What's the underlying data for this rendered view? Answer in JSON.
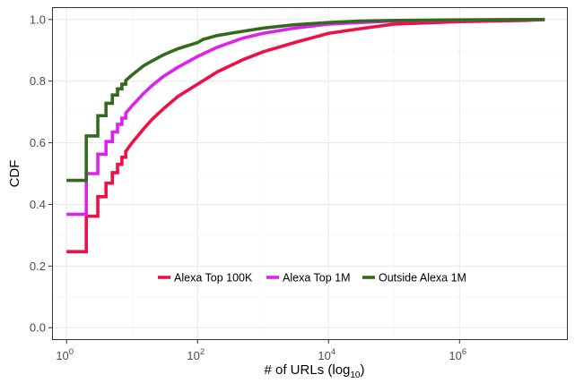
{
  "chart_data": {
    "type": "line",
    "title": "",
    "xlabel": {
      "main": "# of URLs (log",
      "sub": "10",
      "close": ")"
    },
    "ylabel": "CDF",
    "x_scale": "log10",
    "xlim": [
      0.6,
      45000000
    ],
    "ylim": [
      -0.04,
      1.04
    ],
    "x_ticks": [
      {
        "value": 1,
        "base": "10",
        "exp": "0"
      },
      {
        "value": 100,
        "base": "10",
        "exp": "2"
      },
      {
        "value": 10000,
        "base": "10",
        "exp": "4"
      },
      {
        "value": 1000000,
        "base": "10",
        "exp": "6"
      }
    ],
    "y_ticks": [
      {
        "value": 0.0,
        "label": "0.0"
      },
      {
        "value": 0.2,
        "label": "0.2"
      },
      {
        "value": 0.4,
        "label": "0.4"
      },
      {
        "value": 0.6,
        "label": "0.6"
      },
      {
        "value": 0.8,
        "label": "0.8"
      },
      {
        "value": 1.0,
        "label": "1.0"
      }
    ],
    "grid": true,
    "legend_position": "bottom-center, inside",
    "series": [
      {
        "name": "Alexa Top 100K",
        "color": "#ee1044",
        "points": [
          [
            1,
            0.247
          ],
          [
            2,
            0.247
          ],
          [
            2,
            0.362
          ],
          [
            3,
            0.362
          ],
          [
            3,
            0.425
          ],
          [
            4,
            0.425
          ],
          [
            4,
            0.469
          ],
          [
            5,
            0.469
          ],
          [
            5,
            0.503
          ],
          [
            6,
            0.503
          ],
          [
            6,
            0.53
          ],
          [
            7,
            0.53
          ],
          [
            7,
            0.553
          ],
          [
            8,
            0.553
          ],
          [
            8,
            0.572
          ],
          [
            10,
            0.6
          ],
          [
            15,
            0.645
          ],
          [
            20,
            0.675
          ],
          [
            30,
            0.71
          ],
          [
            50,
            0.75
          ],
          [
            100,
            0.79
          ],
          [
            200,
            0.83
          ],
          [
            500,
            0.87
          ],
          [
            1000,
            0.895
          ],
          [
            3000,
            0.925
          ],
          [
            10000,
            0.955
          ],
          [
            30000,
            0.97
          ],
          [
            100000,
            0.985
          ],
          [
            1000000,
            0.993
          ],
          [
            10000000,
            0.997
          ],
          [
            20000000,
            1.0
          ]
        ]
      },
      {
        "name": "Alexa Top 1M",
        "color": "#dd22ee",
        "points": [
          [
            1,
            0.368
          ],
          [
            2,
            0.368
          ],
          [
            2,
            0.5
          ],
          [
            3,
            0.5
          ],
          [
            3,
            0.563
          ],
          [
            4,
            0.563
          ],
          [
            4,
            0.604
          ],
          [
            5,
            0.604
          ],
          [
            5,
            0.635
          ],
          [
            6,
            0.635
          ],
          [
            6,
            0.66
          ],
          [
            7,
            0.66
          ],
          [
            7,
            0.68
          ],
          [
            8,
            0.68
          ],
          [
            8,
            0.696
          ],
          [
            10,
            0.72
          ],
          [
            15,
            0.76
          ],
          [
            20,
            0.785
          ],
          [
            30,
            0.815
          ],
          [
            50,
            0.845
          ],
          [
            100,
            0.88
          ],
          [
            200,
            0.91
          ],
          [
            500,
            0.94
          ],
          [
            1000,
            0.955
          ],
          [
            3000,
            0.972
          ],
          [
            10000,
            0.985
          ],
          [
            30000,
            0.99
          ],
          [
            100000,
            0.995
          ],
          [
            1000000,
            0.998
          ],
          [
            20000000,
            1.0
          ]
        ]
      },
      {
        "name": "Outside Alexa 1M",
        "color": "#336a1e",
        "points": [
          [
            1,
            0.478
          ],
          [
            2,
            0.478
          ],
          [
            2,
            0.622
          ],
          [
            3,
            0.622
          ],
          [
            3,
            0.688
          ],
          [
            4,
            0.688
          ],
          [
            4,
            0.728
          ],
          [
            5,
            0.728
          ],
          [
            5,
            0.755
          ],
          [
            6,
            0.755
          ],
          [
            6,
            0.775
          ],
          [
            7,
            0.775
          ],
          [
            7,
            0.79
          ],
          [
            8,
            0.79
          ],
          [
            8,
            0.802
          ],
          [
            10,
            0.82
          ],
          [
            15,
            0.85
          ],
          [
            20,
            0.865
          ],
          [
            30,
            0.885
          ],
          [
            50,
            0.905
          ],
          [
            100,
            0.925
          ],
          [
            120,
            0.935
          ],
          [
            200,
            0.948
          ],
          [
            500,
            0.962
          ],
          [
            1000,
            0.972
          ],
          [
            3000,
            0.983
          ],
          [
            10000,
            0.99
          ],
          [
            30000,
            0.995
          ],
          [
            100000,
            0.997
          ],
          [
            1000000,
            0.999
          ],
          [
            20000000,
            1.0
          ]
        ]
      }
    ]
  }
}
